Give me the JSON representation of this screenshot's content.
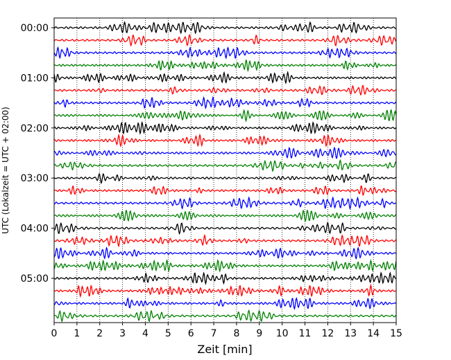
{
  "chart_data": {
    "type": "line",
    "title": "",
    "xlabel": "Zeit  [min]",
    "ylabel": "UTC (Lokalzeit = UTC + 02:00)",
    "xlim": [
      0,
      15
    ],
    "x_ticks": [
      0,
      1,
      2,
      3,
      4,
      5,
      6,
      7,
      8,
      9,
      10,
      11,
      12,
      13,
      14,
      15
    ],
    "hour_labels": [
      "00:00",
      "01:00",
      "02:00",
      "03:00",
      "04:00",
      "05:00"
    ],
    "grid": "vertical dotted at each minute",
    "trace_interval_min": 15,
    "trace_count": 24,
    "trace_colors": [
      "#000000",
      "#ff0000",
      "#0000ff",
      "#008000"
    ]
  }
}
